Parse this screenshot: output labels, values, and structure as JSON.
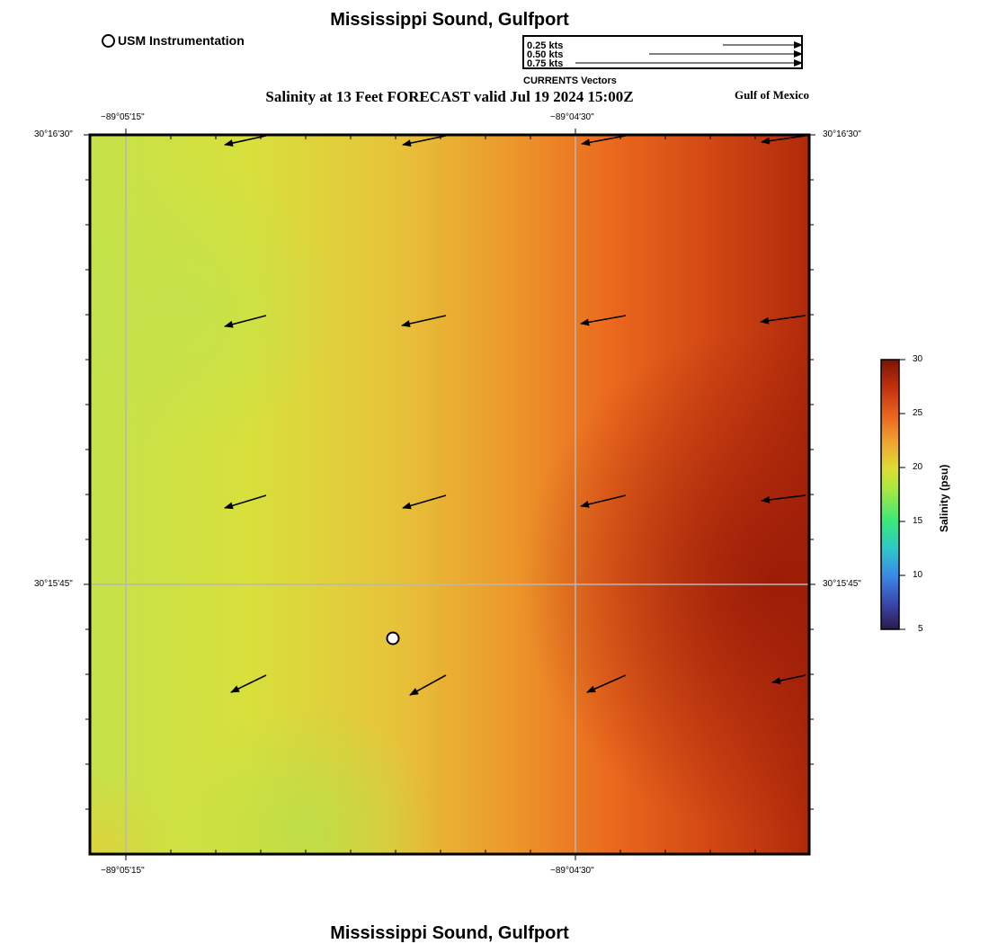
{
  "map": {
    "title_top": "Mississippi Sound, Gulfport",
    "title_bottom": "Mississippi Sound, Gulfport",
    "subtitle": "Salinity at 13 Feet FORECAST valid Jul 19 2024 15:00Z",
    "region_label": "Gulf of Mexico",
    "instrument_legend": "USM Instrumentation",
    "vector_legend": {
      "caption": "CURRENTS Vectors",
      "entries": [
        {
          "label": "0.25 kts",
          "value": 0.25
        },
        {
          "label": "0.50 kts",
          "value": 0.5
        },
        {
          "label": "0.75 kts",
          "value": 0.75
        }
      ]
    },
    "longitude_ticks": [
      "−89°05'15\"",
      "−89°04'30\""
    ],
    "latitude_ticks": [
      "30°16'30\"",
      "30°15'45\""
    ],
    "colorbar": {
      "label": "Salinity (psu)",
      "ticks": [
        "30",
        "25",
        "20",
        "15",
        "10",
        "5"
      ],
      "min": 5,
      "max": 30
    },
    "instrument_station": {
      "name": "USM Instrumentation"
    },
    "current_vectors_note": "uniform grid of current arrows pointing roughly west-southwest",
    "colors": {
      "low_salinity": "#c2e04a",
      "mid_salinity": "#e8b43a",
      "high_salinity": "#e8551e",
      "max_salinity": "#9a1c06"
    }
  }
}
